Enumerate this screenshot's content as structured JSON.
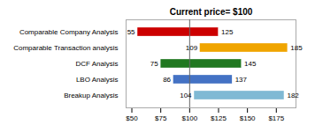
{
  "chart_data": {
    "type": "bar",
    "orientation": "horizontal",
    "title": "Current price= $100",
    "categories": [
      "Comparable Company Analysis",
      "Comparable Transaction analysis",
      "DCF Analysis",
      "LBO Analysis",
      "Breakup Analysis"
    ],
    "low": [
      55,
      109,
      75,
      86,
      104
    ],
    "high": [
      125,
      185,
      145,
      137,
      182
    ],
    "colors": [
      "#cc0000",
      "#f0a500",
      "#217821",
      "#4472c4",
      "#7fb9d4"
    ],
    "current_price": 100,
    "xlim": [
      45,
      192
    ],
    "xticks": [
      {
        "value": 50,
        "label": "$50"
      },
      {
        "value": 75,
        "label": "$75"
      },
      {
        "value": 100,
        "label": "$100"
      },
      {
        "value": 125,
        "label": "$125"
      },
      {
        "value": 150,
        "label": "$150"
      },
      {
        "value": 175,
        "label": "$175"
      }
    ],
    "data_labels": true
  }
}
